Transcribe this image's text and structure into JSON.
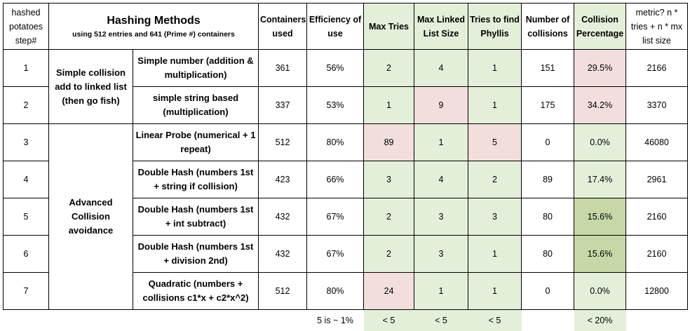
{
  "header": {
    "step": "hashed potatoes step#",
    "title": "Hashing Methods",
    "subtitle": "using 512 entries and 641 (Prime #) containers",
    "containers_used": "Containers used",
    "efficiency": "Efficiency of use",
    "max_tries": "Max Tries",
    "max_list": "Max Linked List Size",
    "tries_phyllis": "Tries to find Phyllis",
    "num_collisions": "Number of collisions",
    "collision_pct": "Collision Percentage",
    "metric": "metric? n * tries + n * mx list size"
  },
  "groups": {
    "simple": "Simple collision add to linked list (then go fish)",
    "advanced": "Advanced Collision avoidance"
  },
  "rows": [
    {
      "step": "1",
      "method": "Simple number (addition & multiplication)",
      "containers": "361",
      "efficiency": "56%",
      "max_tries": "2",
      "max_list": "4",
      "tries": "1",
      "collisions": "151",
      "pct": "29.5%",
      "metric": "2166"
    },
    {
      "step": "2",
      "method": "simple string based (multiplication)",
      "containers": "337",
      "efficiency": "53%",
      "max_tries": "1",
      "max_list": "9",
      "tries": "1",
      "collisions": "175",
      "pct": "34.2%",
      "metric": "3370"
    },
    {
      "step": "3",
      "method": "Linear Probe (numerical + 1 repeat)",
      "containers": "512",
      "efficiency": "80%",
      "max_tries": "89",
      "max_list": "1",
      "tries": "5",
      "collisions": "0",
      "pct": "0.0%",
      "metric": "46080"
    },
    {
      "step": "4",
      "method": "Double Hash (numbers 1st + string if collision)",
      "containers": "423",
      "efficiency": "66%",
      "max_tries": "3",
      "max_list": "4",
      "tries": "2",
      "collisions": "89",
      "pct": "17.4%",
      "metric": "2961"
    },
    {
      "step": "5",
      "method": "Double Hash (numbers 1st + int subtract)",
      "containers": "432",
      "efficiency": "67%",
      "max_tries": "2",
      "max_list": "3",
      "tries": "3",
      "collisions": "80",
      "pct": "15.6%",
      "metric": "2160"
    },
    {
      "step": "6",
      "method": "Double Hash (numbers 1st + division 2nd)",
      "containers": "432",
      "efficiency": "67%",
      "max_tries": "2",
      "max_list": "3",
      "tries": "1",
      "collisions": "80",
      "pct": "15.6%",
      "metric": "2160"
    },
    {
      "step": "7",
      "method": "Quadratic (numbers + collisions c1*x + c2*x^2)",
      "containers": "512",
      "efficiency": "80%",
      "max_tries": "24",
      "max_list": "1",
      "tries": "1",
      "collisions": "0",
      "pct": "0.0%",
      "metric": "12800"
    }
  ],
  "footer": {
    "efficiency": "5 is ~ 1%",
    "max_tries": "< 5",
    "max_list": "< 5",
    "tries": "< 5",
    "pct": "< 20%"
  },
  "colors": {
    "light_green": "#e4efda",
    "pink": "#f3dede",
    "dark_green": "#c5d8a7"
  }
}
